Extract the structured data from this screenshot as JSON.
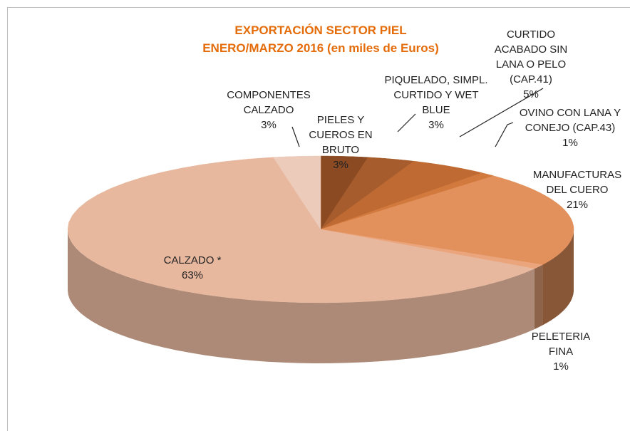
{
  "chart_data": {
    "type": "pie",
    "title": "EXPORTACIÓN SECTOR PIEL",
    "subtitle": "ENERO/MARZO  2016 (en miles de Euros)",
    "categories": [
      "PIELES Y CUEROS EN BRUTO",
      "PIQUELADO, SIMPL. CURTIDO Y WET BLUE",
      "CURTIDO ACABADO SIN LANA O PELO (CAP.41)",
      "OVINO CON LANA Y CONEJO (CAP.43)",
      "MANUFACTURAS DEL CUERO",
      "PELETERIA FINA",
      "CALZADO  *",
      "COMPONENTES CALZADO"
    ],
    "values": [
      3,
      3,
      5,
      1,
      21,
      1,
      63,
      3
    ],
    "value_labels": [
      "3%",
      "3%",
      "5%",
      "1%",
      "21%",
      "1%",
      "63%",
      "3%"
    ],
    "colors": [
      "#8B4A22",
      "#A65C2C",
      "#BF6A32",
      "#D27A3E",
      "#E2915C",
      "#EBA57C",
      "#E7B89E",
      "#ECCBBA"
    ]
  }
}
